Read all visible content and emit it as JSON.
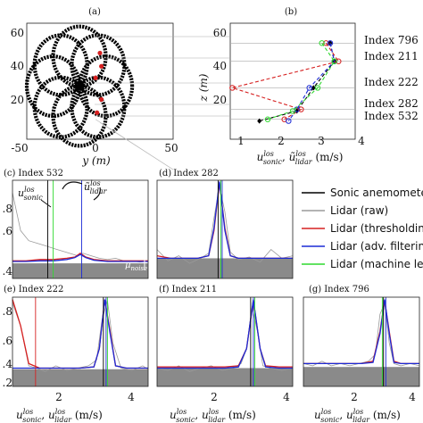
{
  "panels": {
    "a": {
      "label": "(a)",
      "xlabel": "y (m)",
      "xticks": [
        "-50",
        "0",
        "50"
      ],
      "yticks": [
        "20",
        "40",
        "60"
      ]
    },
    "b": {
      "label": "(b)",
      "ylabel": "z (m)",
      "xticks": [
        "1",
        "2",
        "3",
        "4"
      ],
      "yticks": [
        "20",
        "40",
        "60"
      ]
    },
    "c": {
      "label": "(c)",
      "index": "Index 532",
      "yticks": [
        ".8",
        ".6",
        ".4"
      ],
      "xticks": [
        "2",
        "4"
      ],
      "ann_sonic": "u",
      "ann_lidar": "ũ",
      "ann_sup": "los",
      "ann_sonic_sub": "sonic",
      "ann_lidar_sub": "lidar",
      "ann_noise": "μ",
      "ann_noise_sub": "noise"
    },
    "d": {
      "label": "(d)",
      "index": "Index 282"
    },
    "e": {
      "label": "(e)",
      "index": "Index 222",
      "yticks": [
        ".8",
        ".6",
        ".4",
        ".2"
      ],
      "xticks": [
        "2",
        "4"
      ]
    },
    "f": {
      "label": "(f)",
      "index": "Index 211",
      "xticks": [
        "2",
        "4"
      ]
    },
    "g": {
      "label": "(g)",
      "index": "Index 796",
      "xticks": [
        "2",
        "4"
      ]
    }
  },
  "xlabel_bottom": {
    "u": "u",
    "sup": "los",
    "sub1": "sonic",
    "sep": ", ",
    "u2": "u",
    "sub2": "lidar",
    "unit": " (m/s)"
  },
  "xlabel_b": {
    "u": "u",
    "sup": "los",
    "sub1": "sonic",
    "sep": ", ",
    "u2": "ũ",
    "sub2": "lidar",
    "unit": " (m/s)"
  },
  "legend": [
    {
      "label": "Sonic anemometer",
      "color": "#000000"
    },
    {
      "label": "Lidar (raw)",
      "color": "#9a9a9a"
    },
    {
      "label": "Lidar (thresholding)",
      "color": "#d62020"
    },
    {
      "label": "Lidar (adv. filtering)",
      "color": "#1c2bd6"
    },
    {
      "label": "Lidar (machine learning)",
      "color": "#2fd82f"
    }
  ],
  "chart_data": [
    {
      "type": "scatter",
      "panel": "a",
      "xlabel": "y (m)",
      "xlim": [
        -50,
        50
      ],
      "ylim": [
        0,
        70
      ],
      "description_points": "rose-pattern scan positions",
      "highlighted_color": "#d62020"
    },
    {
      "type": "line",
      "panel": "b",
      "ylabel": "z (m)",
      "xlim": [
        1,
        4
      ],
      "ylim": [
        0,
        70
      ],
      "index_labels": [
        "Index 796",
        "Index 211",
        "Index 222",
        "Index 282",
        "Index 532"
      ],
      "index_heights": [
        58,
        47,
        31,
        18,
        12
      ],
      "series": [
        {
          "name": "Sonic anemometer",
          "color": "#000000",
          "points": [
            [
              3.4,
              58
            ],
            [
              3.5,
              47
            ],
            [
              3.0,
              31
            ],
            [
              2.6,
              17
            ],
            [
              1.7,
              11
            ]
          ]
        },
        {
          "name": "Lidar (thresholding)",
          "color": "#d62020",
          "points": [
            [
              3.3,
              58
            ],
            [
              3.6,
              47
            ],
            [
              1.05,
              31
            ],
            [
              2.7,
              18
            ],
            [
              2.3,
              12
            ]
          ]
        },
        {
          "name": "Lidar (adv. filtering)",
          "color": "#1c2bd6",
          "points": [
            [
              3.4,
              58
            ],
            [
              3.5,
              47
            ],
            [
              2.9,
              31
            ],
            [
              2.6,
              18
            ],
            [
              2.4,
              11
            ]
          ]
        },
        {
          "name": "Lidar (machine learning)",
          "color": "#2fd82f",
          "points": [
            [
              3.2,
              58
            ],
            [
              3.5,
              47
            ],
            [
              3.1,
              31
            ],
            [
              2.5,
              17
            ],
            [
              1.9,
              12
            ]
          ]
        }
      ]
    },
    {
      "type": "line",
      "panel": "c",
      "xlim": [
        0,
        5
      ],
      "ylim": [
        0.22,
        1.0
      ],
      "noise": 0.34,
      "vlines": {
        "sonic": 1.3,
        "raw": null,
        "thresholding": null,
        "adv": 2.55,
        "ml": 1.5
      },
      "series": [
        {
          "name": "Lidar (raw)",
          "x": [
            0,
            0.3,
            0.6,
            0.9,
            1.2,
            1.5,
            1.8,
            2.1,
            2.4,
            2.6,
            2.9,
            3.2,
            3.5,
            3.8,
            4.1,
            4.4,
            4.7,
            5.0
          ],
          "y": [
            0.9,
            0.6,
            0.52,
            0.5,
            0.48,
            0.46,
            0.44,
            0.42,
            0.4,
            0.42,
            0.4,
            0.38,
            0.37,
            0.38,
            0.36,
            0.36,
            0.35,
            0.36
          ]
        },
        {
          "name": "Lidar (thresholding)",
          "x": [
            0,
            0.5,
            1.0,
            1.5,
            2.0,
            2.3,
            2.5,
            2.7,
            3.0,
            3.5,
            4.0,
            4.5,
            5.0
          ],
          "y": [
            0.36,
            0.36,
            0.37,
            0.37,
            0.38,
            0.39,
            0.42,
            0.39,
            0.37,
            0.36,
            0.36,
            0.36,
            0.36
          ]
        },
        {
          "name": "Lidar (adv. filtering)",
          "x": [
            0,
            0.5,
            1.0,
            1.5,
            2.0,
            2.3,
            2.5,
            2.7,
            3.0,
            3.5,
            4.0,
            4.5,
            5.0
          ],
          "y": [
            0.355,
            0.355,
            0.36,
            0.36,
            0.37,
            0.385,
            0.41,
            0.385,
            0.365,
            0.355,
            0.355,
            0.355,
            0.355
          ]
        }
      ]
    },
    {
      "type": "line",
      "panel": "d",
      "xlim": [
        0,
        5
      ],
      "ylim": [
        0.22,
        1.0
      ],
      "noise": 0.38,
      "vlines": {
        "sonic": 2.25,
        "adv": 2.4,
        "ml": 2.35
      },
      "series": [
        {
          "name": "Lidar (raw)",
          "x": [
            0,
            0.4,
            0.8,
            1.2,
            1.6,
            1.9,
            2.1,
            2.3,
            2.5,
            2.7,
            3.0,
            3.4,
            3.8,
            4.2,
            4.6,
            5.0
          ],
          "y": [
            0.45,
            0.36,
            0.4,
            0.34,
            0.38,
            0.42,
            0.7,
            0.95,
            0.75,
            0.43,
            0.37,
            0.39,
            0.35,
            0.45,
            0.38,
            0.4
          ]
        },
        {
          "name": "Lidar (thresholding)",
          "x": [
            0,
            0.5,
            1.0,
            1.5,
            1.9,
            2.1,
            2.3,
            2.5,
            2.7,
            3.0,
            3.5,
            4.0,
            4.5,
            5.0
          ],
          "y": [
            0.4,
            0.38,
            0.38,
            0.38,
            0.4,
            0.6,
            0.98,
            0.62,
            0.4,
            0.38,
            0.38,
            0.38,
            0.38,
            0.38
          ]
        },
        {
          "name": "Lidar (adv. filtering)",
          "x": [
            0,
            0.5,
            1.0,
            1.5,
            1.9,
            2.1,
            2.3,
            2.5,
            2.7,
            3.0,
            3.5,
            4.0,
            4.5,
            5.0
          ],
          "y": [
            0.38,
            0.38,
            0.38,
            0.38,
            0.4,
            0.62,
            0.99,
            0.6,
            0.4,
            0.38,
            0.38,
            0.38,
            0.38,
            0.38
          ]
        }
      ]
    },
    {
      "type": "line",
      "panel": "e",
      "xlim": [
        0,
        5
      ],
      "ylim": [
        0.22,
        1.0
      ],
      "noise": 0.37,
      "vlines": {
        "sonic": 3.35,
        "thresholding": 0.85,
        "adv": 3.45,
        "ml": 3.5
      },
      "series": [
        {
          "name": "Lidar (raw)",
          "x": [
            0,
            0.3,
            0.6,
            0.9,
            1.2,
            1.6,
            2.0,
            2.4,
            2.8,
            3.1,
            3.3,
            3.5,
            3.7,
            4.0,
            4.4,
            4.8,
            5.0
          ],
          "y": [
            0.95,
            0.75,
            0.4,
            0.38,
            0.35,
            0.4,
            0.36,
            0.38,
            0.4,
            0.45,
            0.8,
            0.97,
            0.6,
            0.38,
            0.36,
            0.4,
            0.37
          ]
        },
        {
          "name": "Lidar (thresholding)",
          "x": [
            0,
            0.3,
            0.6,
            1.0,
            1.5,
            2.0,
            2.5,
            3.0,
            3.2,
            3.4,
            3.6,
            3.8,
            4.2,
            4.6,
            5.0
          ],
          "y": [
            0.98,
            0.75,
            0.42,
            0.38,
            0.38,
            0.38,
            0.38,
            0.39,
            0.55,
            0.98,
            0.7,
            0.4,
            0.38,
            0.38,
            0.38
          ]
        },
        {
          "name": "Lidar (adv. filtering)",
          "x": [
            0,
            0.5,
            1.0,
            1.5,
            2.0,
            2.5,
            3.0,
            3.2,
            3.4,
            3.6,
            3.8,
            4.2,
            4.6,
            5.0
          ],
          "y": [
            0.38,
            0.38,
            0.38,
            0.38,
            0.38,
            0.38,
            0.39,
            0.55,
            0.98,
            0.68,
            0.4,
            0.38,
            0.38,
            0.38
          ]
        }
      ]
    },
    {
      "type": "line",
      "panel": "f",
      "xlim": [
        0,
        5
      ],
      "ylim": [
        0.22,
        1.0
      ],
      "noise": 0.38,
      "vlines": {
        "sonic": 3.45,
        "adv": 3.55,
        "ml": 3.6
      },
      "series": [
        {
          "name": "Lidar (raw)",
          "x": [
            0,
            0.4,
            0.8,
            1.2,
            1.6,
            2.0,
            2.4,
            2.8,
            3.1,
            3.3,
            3.5,
            3.7,
            3.9,
            4.2,
            4.6,
            5.0
          ],
          "y": [
            0.38,
            0.36,
            0.4,
            0.35,
            0.38,
            0.4,
            0.36,
            0.38,
            0.42,
            0.55,
            0.92,
            0.7,
            0.4,
            0.38,
            0.36,
            0.38
          ]
        },
        {
          "name": "Lidar (thresholding)",
          "x": [
            0,
            0.5,
            1.0,
            1.5,
            2.0,
            2.5,
            3.0,
            3.3,
            3.55,
            3.8,
            4.0,
            4.5,
            5.0
          ],
          "y": [
            0.39,
            0.39,
            0.39,
            0.39,
            0.39,
            0.39,
            0.4,
            0.55,
            0.97,
            0.55,
            0.4,
            0.39,
            0.39
          ]
        },
        {
          "name": "Lidar (adv. filtering)",
          "x": [
            0,
            0.5,
            1.0,
            1.5,
            2.0,
            2.5,
            3.0,
            3.3,
            3.55,
            3.8,
            4.0,
            4.5,
            5.0
          ],
          "y": [
            0.38,
            0.38,
            0.38,
            0.38,
            0.38,
            0.38,
            0.39,
            0.55,
            0.98,
            0.55,
            0.39,
            0.38,
            0.38
          ]
        }
      ]
    },
    {
      "type": "line",
      "panel": "g",
      "xlim": [
        0,
        5
      ],
      "ylim": [
        0.22,
        1.0
      ],
      "noise": 0.39,
      "vlines": {
        "sonic": 3.45,
        "adv": 3.55,
        "ml": 3.4
      },
      "series": [
        {
          "name": "Lidar (raw)",
          "x": [
            0,
            0.4,
            0.8,
            1.2,
            1.6,
            2.0,
            2.4,
            2.8,
            3.1,
            3.3,
            3.5,
            3.7,
            3.9,
            4.2,
            4.6,
            5.0
          ],
          "y": [
            0.42,
            0.4,
            0.44,
            0.4,
            0.42,
            0.4,
            0.42,
            0.44,
            0.5,
            0.85,
            0.95,
            0.6,
            0.42,
            0.4,
            0.42,
            0.4
          ]
        },
        {
          "name": "Lidar (thresholding)",
          "x": [
            0,
            0.5,
            1.0,
            1.5,
            2.0,
            2.5,
            3.0,
            3.3,
            3.5,
            3.7,
            3.9,
            4.2,
            4.6,
            5.0
          ],
          "y": [
            0.42,
            0.42,
            0.42,
            0.42,
            0.42,
            0.42,
            0.44,
            0.7,
            0.97,
            0.7,
            0.44,
            0.42,
            0.42,
            0.42
          ]
        },
        {
          "name": "Lidar (adv. filtering)",
          "x": [
            0,
            0.5,
            1.0,
            1.5,
            2.0,
            2.5,
            3.0,
            3.3,
            3.5,
            3.7,
            3.9,
            4.2,
            4.6,
            5.0
          ],
          "y": [
            0.42,
            0.42,
            0.42,
            0.42,
            0.42,
            0.42,
            0.43,
            0.68,
            0.98,
            0.68,
            0.43,
            0.42,
            0.42,
            0.42
          ]
        }
      ]
    }
  ]
}
